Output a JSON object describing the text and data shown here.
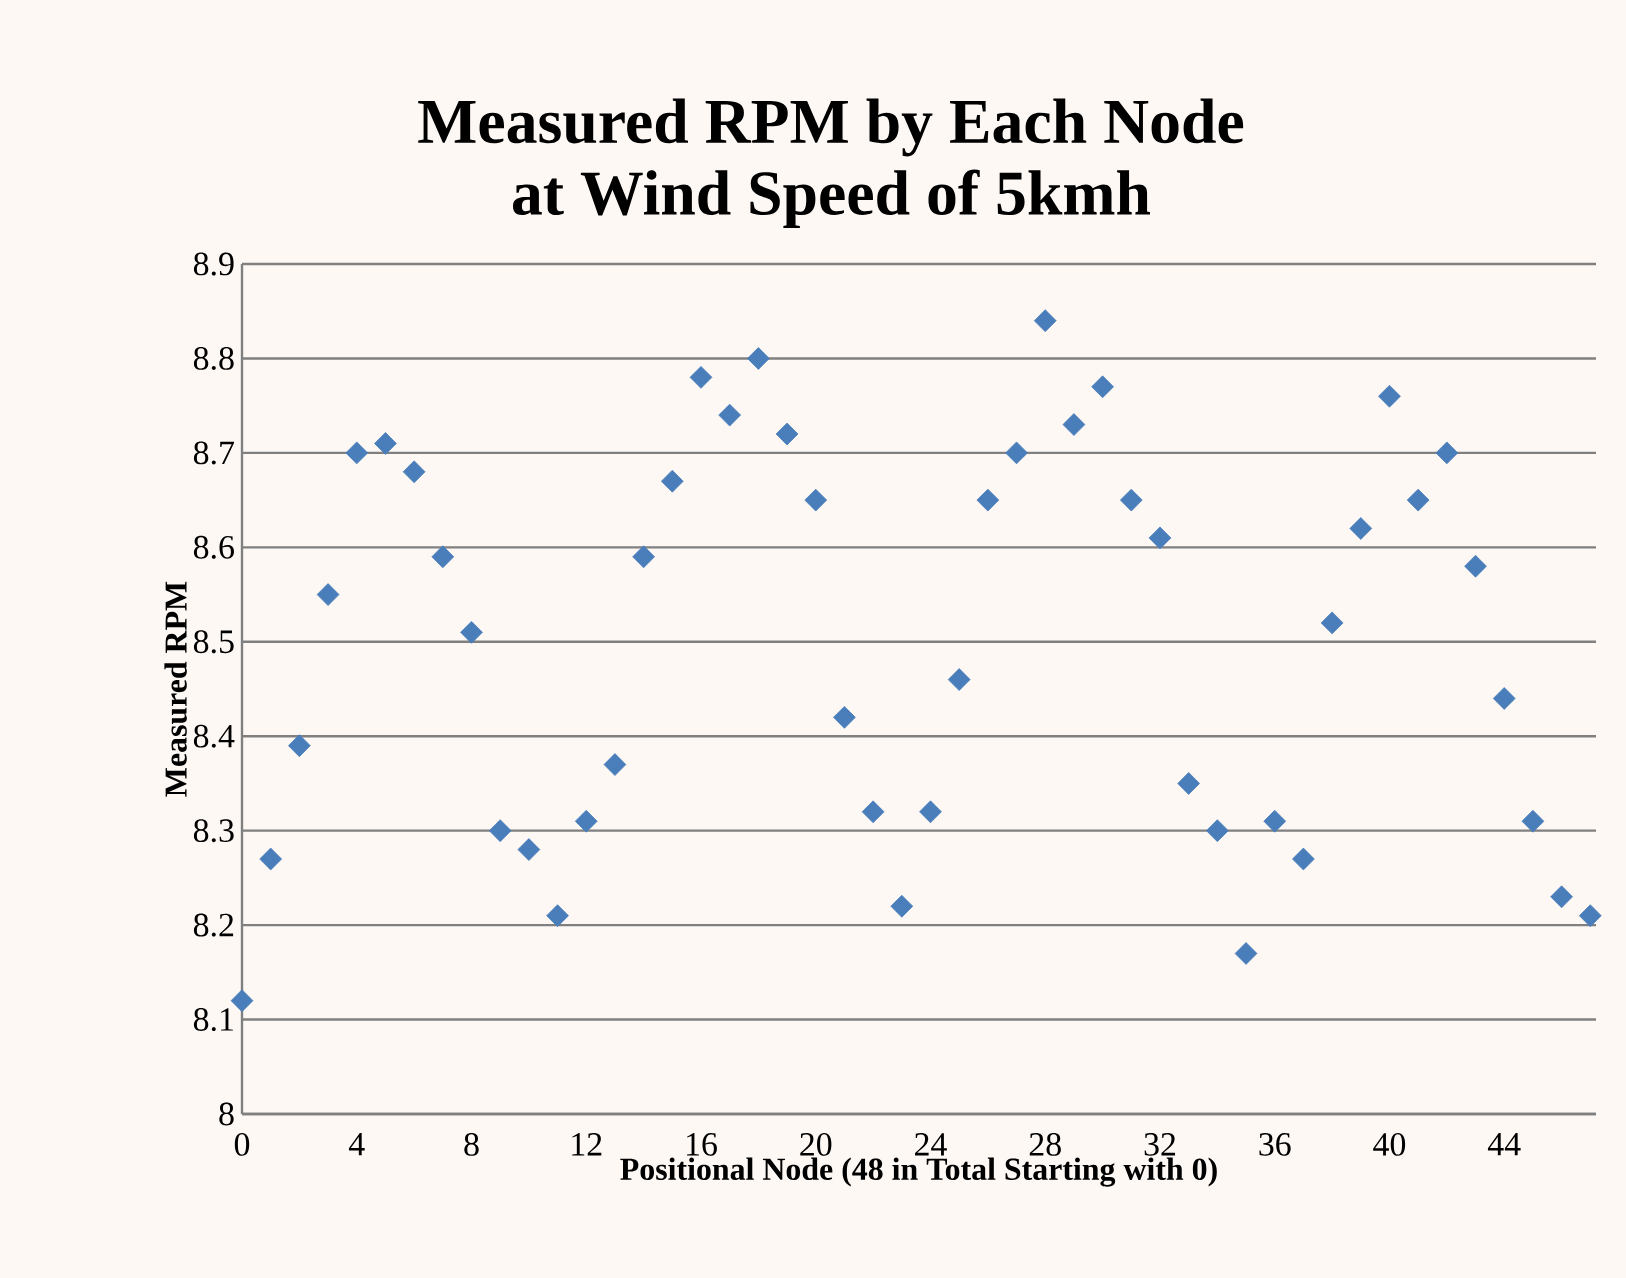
{
  "chart_data": {
    "type": "scatter",
    "title": "Measured RPM by Each Node\nat Wind Speed of 5kmh",
    "xlabel": "Positional Node (48 in Total Starting with 0)",
    "ylabel": "Measured RPM",
    "x": [
      0,
      1,
      2,
      3,
      4,
      5,
      6,
      7,
      8,
      9,
      10,
      11,
      12,
      13,
      14,
      15,
      16,
      17,
      18,
      19,
      20,
      21,
      22,
      23,
      24,
      25,
      26,
      27,
      28,
      29,
      30,
      31,
      32,
      33,
      34,
      35,
      36,
      37,
      38,
      39,
      40,
      41,
      42,
      43,
      44,
      45,
      46,
      47
    ],
    "series": [
      {
        "color": "#4a7ebb",
        "values": [
          8.12,
          8.27,
          8.39,
          8.55,
          8.7,
          8.71,
          8.68,
          8.59,
          8.51,
          8.3,
          8.28,
          8.21,
          8.31,
          8.37,
          8.59,
          8.67,
          8.78,
          8.74,
          8.8,
          8.72,
          8.65,
          8.42,
          8.32,
          8.22,
          8.32,
          8.46,
          8.65,
          8.7,
          8.84,
          8.73,
          8.77,
          8.65,
          8.61,
          8.35,
          8.3,
          8.17,
          8.31,
          8.27,
          8.52,
          8.62,
          8.76,
          8.65,
          8.7,
          8.58,
          8.44,
          8.31,
          8.23,
          8.21
        ]
      }
    ],
    "xlim": [
      0,
      47.2
    ],
    "ylim": [
      8,
      8.9
    ],
    "xticks": [
      0,
      4,
      8,
      12,
      16,
      20,
      24,
      28,
      32,
      36,
      40,
      44
    ],
    "yticks": [
      8,
      8.1,
      8.2,
      8.3,
      8.4,
      8.5,
      8.6,
      8.7,
      8.8,
      8.9
    ],
    "grid": "y",
    "marker": "diamond"
  }
}
